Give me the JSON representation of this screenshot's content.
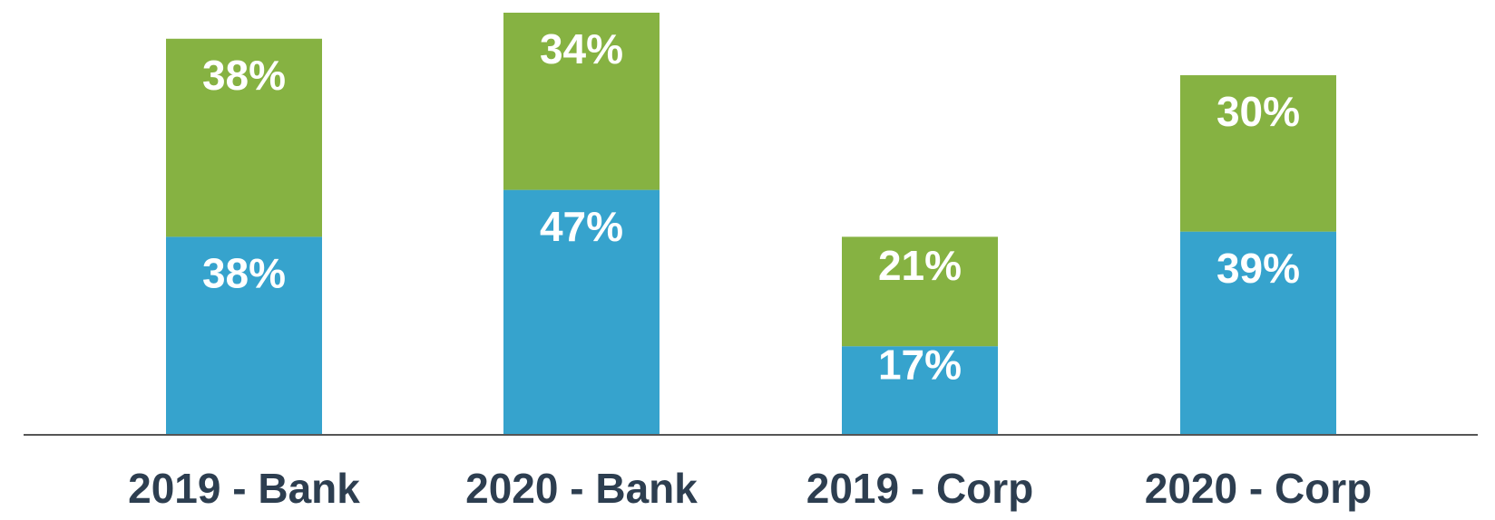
{
  "chart_data": {
    "type": "stacked-bar",
    "categories": [
      "2019 - Bank",
      "2020 - Bank",
      "2019 - Corp",
      "2020 - Corp"
    ],
    "series": [
      {
        "color": "#36a3cd",
        "values": [
          38,
          47,
          17,
          39
        ],
        "value_labels": [
          "38%",
          "47%",
          "17%",
          "39%"
        ]
      },
      {
        "color": "#86b242",
        "values": [
          38,
          34,
          21,
          30
        ],
        "value_labels": [
          "38%",
          "34%",
          "21%",
          "30%"
        ]
      }
    ]
  }
}
